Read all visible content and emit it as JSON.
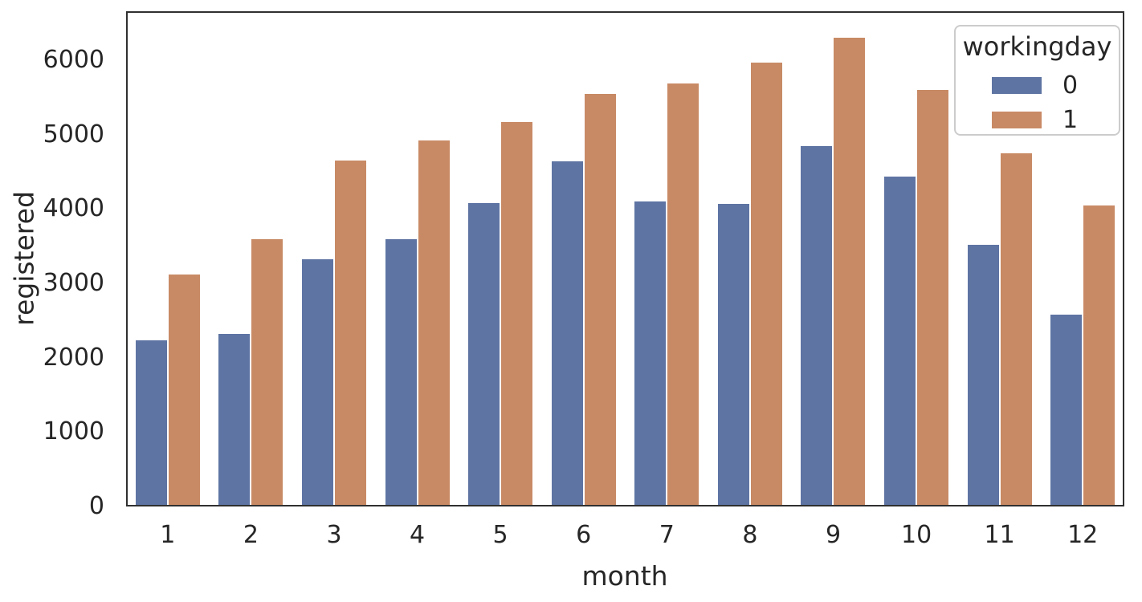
{
  "figure": {
    "background": "#ffffff"
  },
  "chart_data": {
    "type": "bar",
    "title": "",
    "xlabel": "month",
    "ylabel": "registered",
    "categories": [
      "1",
      "2",
      "3",
      "4",
      "5",
      "6",
      "7",
      "8",
      "9",
      "10",
      "11",
      "12"
    ],
    "series": [
      {
        "name": "0",
        "color": "#5e74a3",
        "values": [
          2230,
          2320,
          3330,
          3600,
          4080,
          4640,
          4100,
          4070,
          4850,
          4440,
          3520,
          2580
        ]
      },
      {
        "name": "1",
        "color": "#c88a65",
        "values": [
          3120,
          3600,
          4650,
          4920,
          5170,
          5550,
          5690,
          5970,
          6300,
          5600,
          4750,
          4050
        ]
      }
    ],
    "ylim": [
      0,
      6660
    ],
    "yticks": [
      0,
      1000,
      2000,
      3000,
      4000,
      5000,
      6000
    ],
    "grid": false,
    "legend": {
      "title": "workingday",
      "position": "upper-right",
      "labels": [
        "0",
        "1"
      ]
    }
  },
  "style_colors": {
    "spine": "#303030",
    "text": "#262626",
    "legend_border": "#cccccc"
  }
}
